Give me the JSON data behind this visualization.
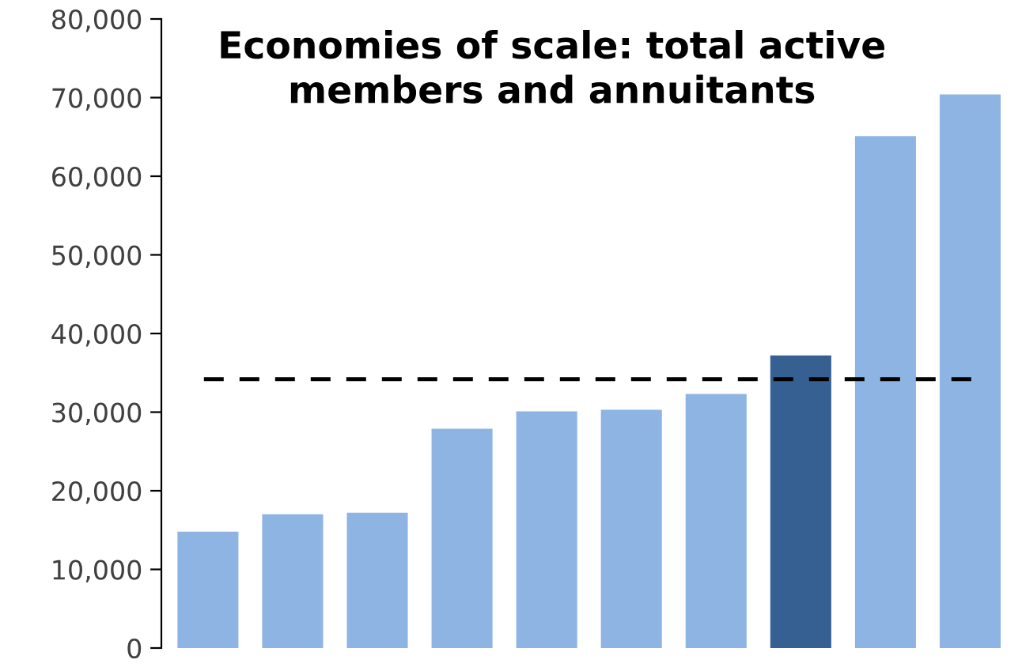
{
  "chart_data": {
    "type": "bar",
    "title": "Economies of scale: total active\nmembers and annuitants",
    "categories": [
      null,
      null,
      null,
      null,
      null,
      null,
      null,
      null,
      null,
      null
    ],
    "values": [
      14800,
      17000,
      17200,
      27900,
      30100,
      30300,
      32300,
      37200,
      65100,
      70400
    ],
    "colors": [
      "#8eb4e3",
      "#8eb4e3",
      "#8eb4e3",
      "#8eb4e3",
      "#8eb4e3",
      "#8eb4e3",
      "#8eb4e3",
      "#376092",
      "#8eb4e3",
      "#8eb4e3"
    ],
    "ylim": [
      0,
      80000
    ],
    "yticks": [
      {
        "value": 0,
        "label": "0"
      },
      {
        "value": 10000,
        "label": "10,000"
      },
      {
        "value": 20000,
        "label": "20,000"
      },
      {
        "value": 30000,
        "label": "30,000"
      },
      {
        "value": 40000,
        "label": "40,000"
      },
      {
        "value": 50000,
        "label": "50,000"
      },
      {
        "value": 60000,
        "label": "60,000"
      },
      {
        "value": 70000,
        "label": "70,000"
      },
      {
        "value": 80000,
        "label": "80,000"
      }
    ],
    "ref_lines": [
      {
        "axis": "y",
        "value": 34200,
        "color": "#000000",
        "line_style": "dashed"
      }
    ],
    "grid": false,
    "legend": false
  }
}
